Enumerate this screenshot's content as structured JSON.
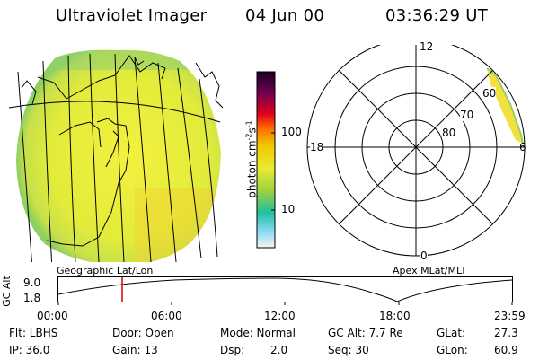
{
  "header": {
    "title": "Ultraviolet Imager",
    "date": "04 Jun 00",
    "time": "03:36:29 UT"
  },
  "colorbar": {
    "axis_label": "photon cm",
    "exp1": "-2",
    "mid": "s",
    "exp2": "-1",
    "ticks": [
      "100",
      "10"
    ]
  },
  "polar": {
    "labels": [
      "12",
      "18",
      "6",
      "0"
    ],
    "lat_labels": [
      "60",
      "70",
      "80"
    ]
  },
  "captions": {
    "left": "Geographic Lat/Lon",
    "right": "Apex MLat/MLT"
  },
  "timeline": {
    "ylabel": "GC Alt",
    "y_ticks": [
      "9.0",
      "1.8"
    ],
    "x_ticks": [
      "00:00",
      "06:00",
      "12:00",
      "18:00",
      "23:59"
    ]
  },
  "footer": {
    "flt": "Flt: LBHS",
    "ip": "IP: 36.0",
    "door": "Door: Open",
    "gain": "Gain: 13",
    "mode": "Mode: Normal",
    "dsp_label": "Dsp:",
    "dsp_value": "2.0",
    "gcalt": "GC Alt: 7.7 Re",
    "seq": "Seq: 30",
    "glat_label": "GLat:",
    "glat_value": "27.3",
    "glon_label": "GLon:",
    "glon_value": "60.9"
  },
  "colors": {
    "marker": "#e00000",
    "disk": "#ecec3a",
    "limb": "#8fd060"
  }
}
